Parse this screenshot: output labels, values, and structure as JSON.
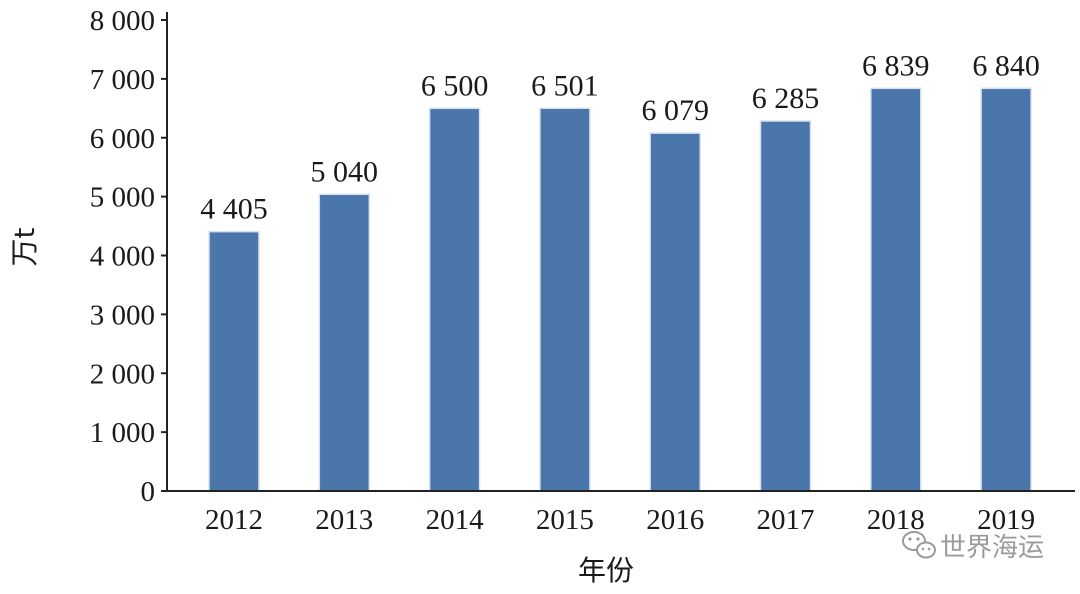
{
  "chart_data": {
    "type": "bar",
    "categories": [
      "2012",
      "2013",
      "2014",
      "2015",
      "2016",
      "2017",
      "2018",
      "2019"
    ],
    "values": [
      4405,
      5040,
      6500,
      6501,
      6079,
      6285,
      6839,
      6840
    ],
    "data_labels": [
      "4 405",
      "5 040",
      "6 500",
      "6 501",
      "6 079",
      "6 285",
      "6 839",
      "6 840"
    ],
    "title": "",
    "xlabel": "年份",
    "ylabel": "万t",
    "ylim": [
      0,
      8000
    ],
    "yticks": [
      0,
      1000,
      2000,
      3000,
      4000,
      5000,
      6000,
      7000,
      8000
    ],
    "ytick_labels": [
      "0",
      "1 000",
      "2 000",
      "3 000",
      "4 000",
      "5 000",
      "6 000",
      "7 000",
      "8 000"
    ],
    "grid": false,
    "legend": "none",
    "bar_color": "#4a76ab",
    "bar_edge_color": "#d8e2ef"
  },
  "watermark": {
    "text": "世界海运",
    "icon": "wechat-icon"
  }
}
